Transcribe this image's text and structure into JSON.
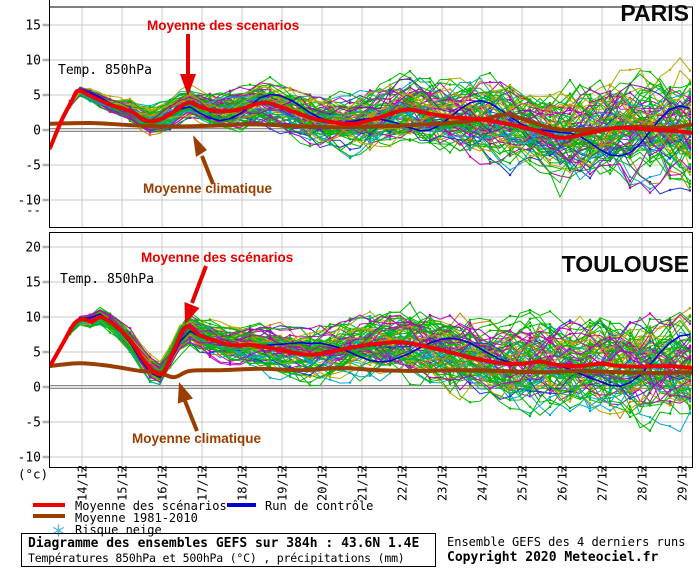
{
  "page": {
    "background": "#ffffff"
  },
  "chart_data": [
    {
      "type": "line",
      "title": "PARIS",
      "inner_label": "Temp. 850hPa",
      "unit": "°C",
      "ylim": [
        -13.9,
        17.6
      ],
      "yticks": [
        15,
        10,
        5,
        0,
        -5,
        -10
      ],
      "below_axis_label": "--",
      "grid": true,
      "x_tick_labels": [
        "14/12",
        "15/12",
        "16/12",
        "17/12",
        "18/12",
        "19/12",
        "20/12",
        "21/12",
        "22/12",
        "23/12",
        "24/12",
        "25/12",
        "26/12",
        "27/12",
        "28/12",
        "29/12"
      ],
      "x_tick_interval_days": 1,
      "annotations": {
        "scenario": {
          "text": "Moyenne des scenarios",
          "color": "#e60000"
        },
        "climato": {
          "text": "Moyenne climatique",
          "color": "#9a3e00"
        }
      },
      "series": [
        {
          "name": "Moyenne des scénarios",
          "color": "#ee0000",
          "width": 4,
          "x_days": [
            0,
            0.3,
            0.55,
            0.7,
            1,
            1.5,
            2,
            2.3,
            2.5,
            2.8,
            3.1,
            3.45,
            3.8,
            4.2,
            4.7,
            5.3,
            5.6,
            6.1,
            6.6,
            7.2,
            7.6,
            8.2,
            8.9,
            9.5,
            10.1,
            10.8,
            11.5,
            12.1,
            12.8,
            13.5,
            14.2,
            14.9,
            15.5,
            16.05
          ],
          "values": [
            -2.6,
            1.5,
            4.2,
            5.6,
            4.9,
            3.6,
            2.7,
            1.6,
            1.25,
            1.6,
            2.6,
            3.9,
            3.2,
            2.7,
            2.9,
            3.9,
            3.6,
            2.6,
            1.6,
            1.0,
            0.9,
            1.7,
            2.9,
            2.3,
            1.8,
            1.5,
            0.8,
            0.0,
            -1.1,
            -0.4,
            0.3,
            0.1,
            -0.1,
            -0.4
          ]
        },
        {
          "name": "Moyenne 1981-2010",
          "color": "#9a3e00",
          "width": 4,
          "x_days": [
            0,
            1,
            2,
            3,
            4,
            5,
            6,
            7,
            8,
            9,
            10,
            10.8,
            11.4,
            12,
            12.6,
            13.2,
            14,
            14.7,
            15.4,
            16.05
          ],
          "values": [
            0.9,
            1.0,
            0.7,
            0.5,
            0.6,
            0.8,
            0.6,
            0.4,
            0.5,
            0.7,
            1.0,
            1.5,
            2.2,
            1.2,
            0.2,
            0.0,
            0.2,
            0.5,
            0.3,
            0.8
          ]
        },
        {
          "name": "Run de contrôle",
          "color": "#0000d0",
          "width": 1.6,
          "generated_from_mean": true,
          "seed": 901
        }
      ],
      "ensemble": {
        "members": 84,
        "seed": 11,
        "note": "individual GEFS member traces regenerated around the mean",
        "spread": {
          "t_days": [
            0,
            2,
            4,
            8,
            12,
            16
          ],
          "half_width_c": [
            0.3,
            1.5,
            2.5,
            4,
            6,
            8
          ]
        },
        "palette": [
          {
            "color": "#00b800",
            "weight": 42
          },
          {
            "color": "#c000c0",
            "weight": 17
          },
          {
            "color": "#00a8d0",
            "weight": 13
          },
          {
            "color": "#b8a800",
            "weight": 13
          },
          {
            "color": "#2038d0",
            "weight": 5
          },
          {
            "color": "#d88000",
            "weight": 5
          },
          {
            "color": "#7818b8",
            "weight": 5
          }
        ]
      }
    },
    {
      "type": "line",
      "title": "TOULOUSE",
      "inner_label": "Temp. 850hPa",
      "unit": "°C",
      "ylim": [
        -11.5,
        22.1
      ],
      "yticks": [
        20,
        15,
        10,
        5,
        0,
        -5,
        -10
      ],
      "below_axis_label": "(°c)",
      "grid": true,
      "x_tick_labels": [
        "14/12",
        "15/12",
        "16/12",
        "17/12",
        "18/12",
        "19/12",
        "20/12",
        "21/12",
        "22/12",
        "23/12",
        "24/12",
        "25/12",
        "26/12",
        "27/12",
        "28/12",
        "29/12"
      ],
      "x_tick_interval_days": 1,
      "annotations": {
        "scenario": {
          "text": "Moyenne des scénarios",
          "color": "#e60000"
        },
        "climato": {
          "text": "Moyenne climatique",
          "color": "#9a3e00"
        }
      },
      "series": [
        {
          "name": "Moyenne des scénarios",
          "color": "#ee0000",
          "width": 4,
          "x_days": [
            0,
            0.3,
            0.6,
            0.83,
            1.05,
            1.25,
            1.6,
            2.0,
            2.25,
            2.5,
            2.8,
            3.1,
            3.4,
            3.75,
            4.1,
            4.5,
            5.0,
            5.5,
            6.0,
            6.5,
            7.0,
            7.5,
            7.9,
            8.4,
            8.75,
            9.25,
            9.75,
            10.25,
            10.75,
            11.25,
            11.75,
            12.25,
            12.75,
            13.25,
            13.75,
            14.25,
            14.75,
            15.25,
            15.75,
            16.05
          ],
          "values": [
            3.0,
            6.0,
            9.0,
            9.7,
            9.3,
            10.0,
            8.9,
            6.7,
            4.6,
            2.7,
            1.9,
            5.3,
            8.6,
            7.4,
            6.7,
            6.0,
            6.0,
            5.6,
            5.0,
            4.6,
            5.0,
            5.6,
            6.0,
            6.3,
            6.4,
            6.0,
            5.3,
            4.6,
            3.9,
            3.4,
            3.3,
            3.6,
            3.1,
            3.0,
            3.3,
            3.0,
            2.9,
            3.0,
            2.9,
            2.7
          ]
        },
        {
          "name": "Moyenne 1981-2010",
          "color": "#9a3e00",
          "width": 4,
          "x_days": [
            0,
            0.75,
            1.5,
            2.25,
            2.7,
            3.1,
            3.5,
            4.25,
            5.25,
            6.25,
            7.25,
            8.25,
            9.25,
            10.25,
            11.25,
            12.25,
            13.25,
            14.25,
            15.25,
            16.05
          ],
          "values": [
            3.0,
            3.4,
            3.0,
            2.3,
            2.1,
            1.4,
            2.3,
            2.4,
            2.6,
            2.4,
            2.7,
            2.4,
            2.3,
            2.4,
            2.3,
            2.1,
            2.3,
            2.1,
            2.0,
            2.1
          ]
        },
        {
          "name": "Run de contrôle",
          "color": "#0000d0",
          "width": 1.6,
          "generated_from_mean": true,
          "seed": 902
        }
      ],
      "ensemble": {
        "members": 84,
        "seed": 23,
        "note": "individual GEFS member traces regenerated around the mean",
        "spread": {
          "t_days": [
            0,
            2,
            4,
            8,
            12,
            16
          ],
          "half_width_c": [
            0.3,
            1.5,
            2.5,
            4,
            6,
            8
          ]
        },
        "palette": [
          {
            "color": "#00b800",
            "weight": 42
          },
          {
            "color": "#c000c0",
            "weight": 17
          },
          {
            "color": "#00a8d0",
            "weight": 13
          },
          {
            "color": "#b8a800",
            "weight": 13
          },
          {
            "color": "#2038d0",
            "weight": 5
          },
          {
            "color": "#d88000",
            "weight": 5
          },
          {
            "color": "#7818b8",
            "weight": 5
          }
        ]
      }
    }
  ],
  "legend": {
    "items": [
      {
        "label": "Moyenne des scénarios",
        "swatch": "line",
        "color": "#ee0000"
      },
      {
        "label": "Moyenne 1981-2010",
        "swatch": "line",
        "color": "#9a3e00"
      },
      {
        "label": "Risque neige",
        "swatch": "snowflake",
        "color": "#5fb8e0"
      },
      {
        "label": "Run de contrôle",
        "swatch": "line",
        "color": "#0000d0"
      }
    ]
  },
  "footer": {
    "box_line1": "Diagramme des ensembles GEFS sur 384h : 43.6N 1.4E",
    "box_line2": "Températures 850hPa et 500hPa (°C) , précipitations (mm)",
    "right_line1": "Ensemble GEFS des 4 derniers runs",
    "right_line2": "Copyright 2020 Meteociel.fr"
  }
}
